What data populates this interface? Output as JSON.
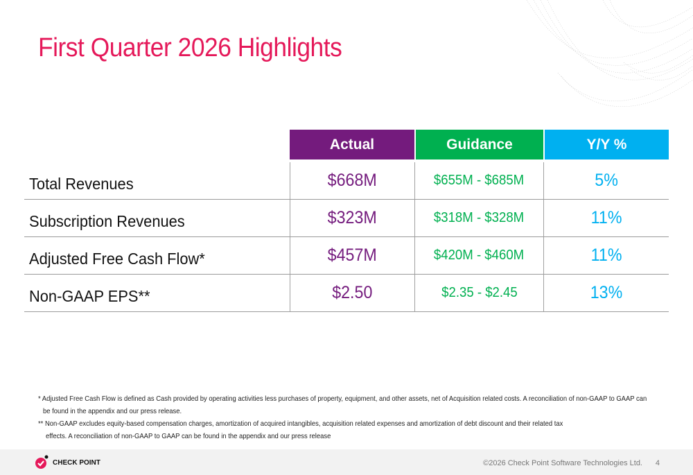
{
  "title": "First Quarter 2026 Highlights",
  "table": {
    "headers": [
      {
        "label": "Actual",
        "color": "#741b7d"
      },
      {
        "label": "Guidance",
        "color": "#00b050"
      },
      {
        "label": "Y/Y %",
        "color": "#00b0f0"
      }
    ],
    "rows": [
      {
        "metric": "Total Revenues",
        "actual": "$668M",
        "guidance": "$655M - $685M",
        "yy": "5%"
      },
      {
        "metric": "Subscription Revenues",
        "actual": "$323M",
        "guidance": "$318M - $328M",
        "yy": "11%"
      },
      {
        "metric": "Adjusted Free Cash Flow*",
        "actual": "$457M",
        "guidance": "$420M - $460M",
        "yy": "11%"
      },
      {
        "metric": "Non-GAAP EPS**",
        "actual": "$2.50",
        "guidance": "$2.35 - $2.45",
        "yy": "13%"
      }
    ]
  },
  "footnotes": {
    "fn1_line1": "* Adjusted Free Cash Flow is defined as Cash provided by operating activities less purchases of property, equipment, and other assets, net of Acquisition related costs. A  reconciliation of non-GAAP to GAAP can",
    "fn1_line2": "be found in the appendix and our press release.",
    "fn2_line1": "** Non-GAAP excludes equity-based compensation charges, amortization of acquired intangibles, acquisition related expenses and amortization of debt discount and their related tax",
    "fn2_line2": "effects. A  reconciliation of non-GAAP to GAAP can be found in the appendix and our press release"
  },
  "footer": {
    "logo_text": "CHECK POINT",
    "copyright": "©2026 Check Point Software Technologies Ltd.",
    "page": "4"
  },
  "colors": {
    "title": "#e5195a",
    "brand": "#e5195a"
  }
}
